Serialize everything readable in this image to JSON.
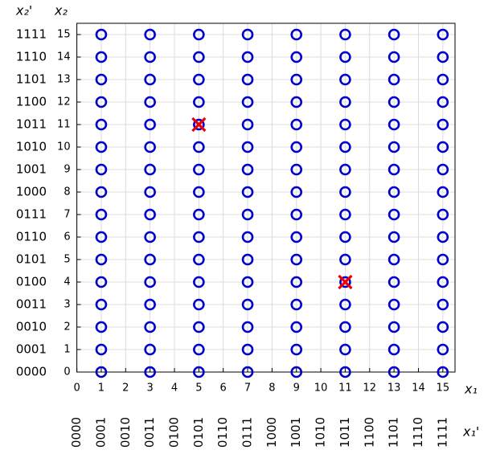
{
  "chart_data": {
    "type": "scatter",
    "x_label": "x₁",
    "y_label": "x₂",
    "x2_label": "x₁'",
    "y2_label": "x₂'",
    "xlim": [
      0,
      15.5
    ],
    "ylim": [
      0,
      15.5
    ],
    "xticks": [
      0,
      1,
      2,
      3,
      4,
      5,
      6,
      7,
      8,
      9,
      10,
      11,
      12,
      13,
      14,
      15
    ],
    "yticks": [
      0,
      1,
      2,
      3,
      4,
      5,
      6,
      7,
      8,
      9,
      10,
      11,
      12,
      13,
      14,
      15
    ],
    "x2ticks": [
      {
        "value": 0,
        "label": "0000"
      },
      {
        "value": 1,
        "label": "0001"
      },
      {
        "value": 2,
        "label": "0010"
      },
      {
        "value": 3,
        "label": "0011"
      },
      {
        "value": 4,
        "label": "0100"
      },
      {
        "value": 5,
        "label": "0101"
      },
      {
        "value": 6,
        "label": "0110"
      },
      {
        "value": 7,
        "label": "0111"
      },
      {
        "value": 8,
        "label": "1000"
      },
      {
        "value": 9,
        "label": "1001"
      },
      {
        "value": 10,
        "label": "1010"
      },
      {
        "value": 11,
        "label": "1011"
      },
      {
        "value": 12,
        "label": "1100"
      },
      {
        "value": 13,
        "label": "1101"
      },
      {
        "value": 14,
        "label": "1110"
      },
      {
        "value": 15,
        "label": "1111"
      }
    ],
    "y2ticks": [
      {
        "value": 0,
        "label": "0000"
      },
      {
        "value": 1,
        "label": "0001"
      },
      {
        "value": 2,
        "label": "0010"
      },
      {
        "value": 3,
        "label": "0011"
      },
      {
        "value": 4,
        "label": "0100"
      },
      {
        "value": 5,
        "label": "0101"
      },
      {
        "value": 6,
        "label": "0110"
      },
      {
        "value": 7,
        "label": "0111"
      },
      {
        "value": 8,
        "label": "1000"
      },
      {
        "value": 9,
        "label": "1001"
      },
      {
        "value": 10,
        "label": "1010"
      },
      {
        "value": 11,
        "label": "1011"
      },
      {
        "value": 12,
        "label": "1100"
      },
      {
        "value": 13,
        "label": "1101"
      },
      {
        "value": 14,
        "label": "1110"
      },
      {
        "value": 15,
        "label": "1111"
      }
    ],
    "grid": true,
    "series": [
      {
        "color": "#0000cc",
        "marker": "circle",
        "x": [
          1,
          1,
          1,
          1,
          1,
          1,
          1,
          1,
          1,
          1,
          1,
          1,
          1,
          1,
          1,
          1,
          3,
          3,
          3,
          3,
          3,
          3,
          3,
          3,
          3,
          3,
          3,
          3,
          3,
          3,
          3,
          3,
          5,
          5,
          5,
          5,
          5,
          5,
          5,
          5,
          5,
          5,
          5,
          5,
          5,
          5,
          5,
          5,
          7,
          7,
          7,
          7,
          7,
          7,
          7,
          7,
          7,
          7,
          7,
          7,
          7,
          7,
          7,
          7,
          9,
          9,
          9,
          9,
          9,
          9,
          9,
          9,
          9,
          9,
          9,
          9,
          9,
          9,
          9,
          9,
          11,
          11,
          11,
          11,
          11,
          11,
          11,
          11,
          11,
          11,
          11,
          11,
          11,
          11,
          11,
          11,
          13,
          13,
          13,
          13,
          13,
          13,
          13,
          13,
          13,
          13,
          13,
          13,
          13,
          13,
          13,
          13,
          15,
          15,
          15,
          15,
          15,
          15,
          15,
          15,
          15,
          15,
          15,
          15,
          15,
          15,
          15,
          15
        ],
        "values": [
          0,
          1,
          2,
          3,
          4,
          5,
          6,
          7,
          8,
          9,
          10,
          11,
          12,
          13,
          14,
          15,
          0,
          1,
          2,
          3,
          4,
          5,
          6,
          7,
          8,
          9,
          10,
          11,
          12,
          13,
          14,
          15,
          0,
          1,
          2,
          3,
          4,
          5,
          6,
          7,
          8,
          9,
          10,
          11,
          12,
          13,
          14,
          15,
          0,
          1,
          2,
          3,
          4,
          5,
          6,
          7,
          8,
          9,
          10,
          11,
          12,
          13,
          14,
          15,
          0,
          1,
          2,
          3,
          4,
          5,
          6,
          7,
          8,
          9,
          10,
          11,
          12,
          13,
          14,
          15,
          0,
          1,
          2,
          3,
          4,
          5,
          6,
          7,
          8,
          9,
          10,
          11,
          12,
          13,
          14,
          15,
          0,
          1,
          2,
          3,
          4,
          5,
          6,
          7,
          8,
          9,
          10,
          11,
          12,
          13,
          14,
          15,
          0,
          1,
          2,
          3,
          4,
          5,
          6,
          7,
          8,
          9,
          10,
          11,
          12,
          13,
          14,
          15
        ]
      },
      {
        "color": "#ee0000",
        "marker": "x",
        "x": [
          5,
          11
        ],
        "values": [
          11,
          4
        ]
      }
    ]
  }
}
